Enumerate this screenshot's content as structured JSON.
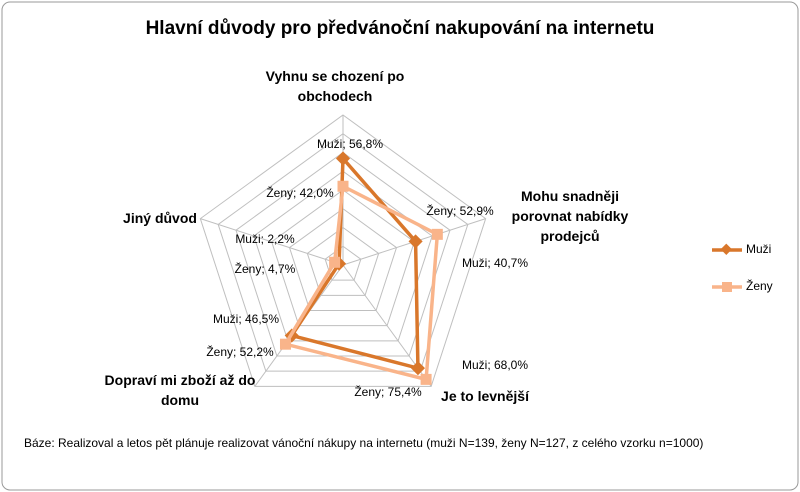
{
  "chart_data": {
    "type": "radar",
    "title": "Hlavní důvody pro předvánoční nakupování na internetu",
    "categories": [
      "Vyhnu se chození po obchodech",
      "Mohu snadněji porovnat nabídky prodejců",
      "Je to levnější",
      "Dopraví mi zboží až do domu",
      "Jiný důvod"
    ],
    "series": [
      {
        "name": "Muži",
        "color": "#d9772b",
        "values": [
          56.8,
          40.7,
          68.0,
          46.5,
          2.2
        ],
        "value_labels": [
          "Muži; 56,8%",
          "Muži; 40,7%",
          "Muži; 68,0%",
          "Muži; 46,5%",
          "Muži; 2,2%"
        ]
      },
      {
        "name": "Ženy",
        "color": "#f9b48a",
        "values": [
          42.0,
          52.9,
          75.4,
          52.2,
          4.7
        ],
        "value_labels": [
          "Ženy; 42,0%",
          "Ženy; 52,9%",
          "Ženy; 75,4%",
          "Ženy; 52,2%",
          "Ženy; 4,7%"
        ]
      }
    ],
    "ylim": [
      0,
      80
    ],
    "yticks": [
      0,
      10,
      20,
      30,
      40,
      50,
      60,
      70,
      80
    ],
    "grid": true,
    "legend": "right",
    "note": "Báze:  Realizoval a letos  pět plánuje realizovat vánoční nákupy na internetu  (muži N=139, ženy N=127, z celého vzorku n=1000)"
  }
}
